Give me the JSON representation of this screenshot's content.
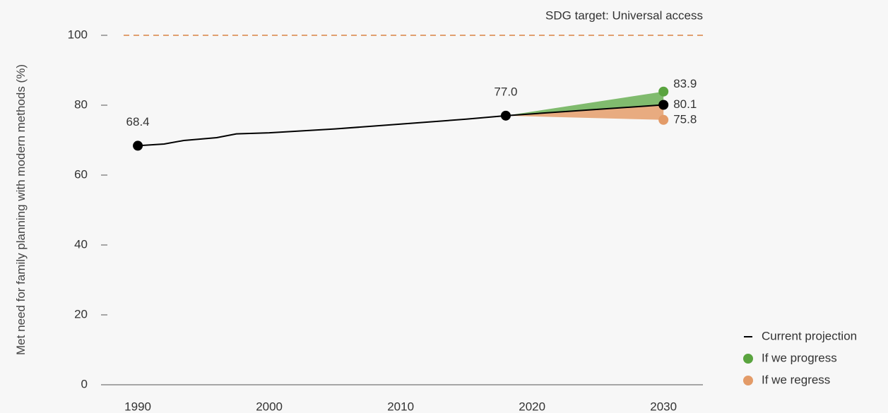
{
  "chart_data": {
    "type": "line",
    "y_label": "Met need for family planning with modern methods (%)",
    "xlim": [
      1987.2,
      2033
    ],
    "xticks": [
      1990,
      2000,
      2010,
      2020,
      2030
    ],
    "ylim": [
      0,
      100
    ],
    "yticks": [
      0,
      20,
      40,
      60,
      80,
      100
    ],
    "target": {
      "value": 100,
      "label": "SDG target: Universal access",
      "color": "#e0a070"
    },
    "legend": "bottom-right",
    "series": [
      {
        "name": "Current projection",
        "color": "#000000",
        "x": [
          1990,
          1992,
          1993.5,
          1996,
          1997.5,
          2000,
          2005,
          2010,
          2015,
          2018,
          2030
        ],
        "values": [
          68.4,
          68.9,
          69.9,
          70.7,
          71.8,
          72.1,
          73.2,
          74.6,
          76.0,
          77.0,
          80.1
        ],
        "value_labels": [
          "68.4",
          null,
          null,
          null,
          null,
          null,
          null,
          null,
          null,
          "77.0",
          "80.1"
        ]
      },
      {
        "name": "If we progress",
        "color": "#5aa43f",
        "area_color": "#80bb6e",
        "x": [
          2018,
          2030
        ],
        "values": [
          77.0,
          83.9
        ],
        "value_labels": [
          null,
          "83.9"
        ]
      },
      {
        "name": "If we regress",
        "color": "#e39b68",
        "area_color": "#e8ab80",
        "x": [
          2018,
          2030
        ],
        "values": [
          77.0,
          75.8
        ],
        "value_labels": [
          null,
          "75.8"
        ]
      }
    ]
  }
}
